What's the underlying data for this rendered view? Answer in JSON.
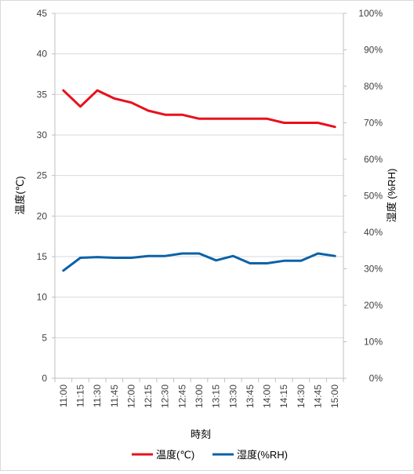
{
  "chart_data": {
    "type": "line",
    "categories": [
      "11:00",
      "11:15",
      "11:30",
      "11:45",
      "12:00",
      "12:15",
      "12:30",
      "12:45",
      "13:00",
      "13:15",
      "13:30",
      "13:45",
      "14:00",
      "14:15",
      "14:30",
      "14:45",
      "15:00"
    ],
    "series": [
      {
        "name": "温度(℃)",
        "axis": "left",
        "color": "#e8101c",
        "values": [
          35.5,
          33.5,
          35.5,
          34.5,
          34.0,
          33.0,
          32.5,
          32.5,
          32.0,
          32.0,
          32.0,
          32.0,
          32.0,
          31.5,
          31.5,
          31.5,
          31.0
        ]
      },
      {
        "name": "湿度(%RH)",
        "axis": "right",
        "color": "#0b62a8",
        "values": [
          29.5,
          33.0,
          33.2,
          33.0,
          33.0,
          33.5,
          33.5,
          34.2,
          34.2,
          32.3,
          33.5,
          31.5,
          31.5,
          32.2,
          32.2,
          34.2,
          33.5
        ]
      }
    ],
    "xlabel": "時刻",
    "ylabel": "温度(℃)",
    "y2label": "湿度 (%RH)",
    "ylim": [
      0,
      45
    ],
    "y2lim": [
      0,
      100
    ],
    "yticks": [
      "0",
      "5",
      "10",
      "15",
      "20",
      "25",
      "30",
      "35",
      "40",
      "45"
    ],
    "y2ticks": [
      "0%",
      "10%",
      "20%",
      "30%",
      "40%",
      "50%",
      "60%",
      "70%",
      "80%",
      "90%",
      "100%"
    ],
    "grid": true,
    "legend": "bottom"
  }
}
